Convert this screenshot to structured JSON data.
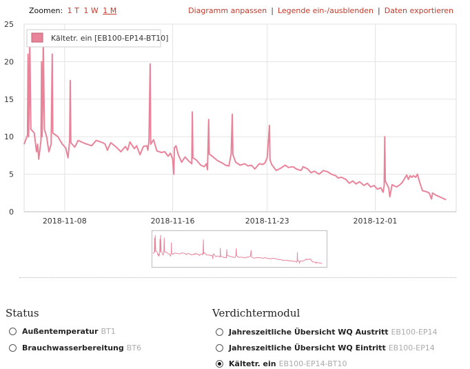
{
  "toolbar": {
    "zoom_label": "Zoomen:",
    "zoom_options": [
      "1 T",
      "1 W",
      "1 M"
    ],
    "zoom_active": "1 M",
    "actions": [
      "Diagramm anpassen",
      "Legende ein-/ausblenden",
      "Daten exportieren"
    ]
  },
  "chart_data": {
    "type": "line",
    "x_start": "2018-11-05",
    "x_end": "2018-12-07",
    "ylim": [
      0,
      25
    ],
    "yticks": [
      0,
      5,
      10,
      15,
      20,
      25
    ],
    "xticks": [
      "2018-11-08",
      "2018-11-16",
      "2018-11-23",
      "2018-12-01"
    ],
    "grid": true,
    "legend_position": "top-left",
    "series": [
      {
        "name": "Kältetr. ein [EB100-EP14-BT10]",
        "color": "#e8839a",
        "points": [
          [
            "2018-11-05 00:00",
            9.0
          ],
          [
            "2018-11-05 06:00",
            10.2
          ],
          [
            "2018-11-05 07:00",
            21.0
          ],
          [
            "2018-11-05 08:00",
            10.0
          ],
          [
            "2018-11-05 09:00",
            14.0
          ],
          [
            "2018-11-05 10:00",
            23.0
          ],
          [
            "2018-11-05 12:00",
            11.0
          ],
          [
            "2018-11-05 18:00",
            10.5
          ],
          [
            "2018-11-05 22:00",
            8.0
          ],
          [
            "2018-11-06 00:00",
            9.0
          ],
          [
            "2018-11-06 02:00",
            7.0
          ],
          [
            "2018-11-06 06:00",
            9.5
          ],
          [
            "2018-11-06 07:00",
            20.0
          ],
          [
            "2018-11-06 08:00",
            10.0
          ],
          [
            "2018-11-06 09:00",
            14.0
          ],
          [
            "2018-11-06 10:00",
            23.0
          ],
          [
            "2018-11-06 12:00",
            11.0
          ],
          [
            "2018-11-06 16:00",
            10.0
          ],
          [
            "2018-11-06 20:00",
            8.0
          ],
          [
            "2018-11-07 00:00",
            9.0
          ],
          [
            "2018-11-07 02:00",
            21.0
          ],
          [
            "2018-11-07 03:00",
            10.5
          ],
          [
            "2018-11-07 12:00",
            10.0
          ],
          [
            "2018-11-07 20:00",
            9.0
          ],
          [
            "2018-11-08 02:00",
            8.5
          ],
          [
            "2018-11-08 06:00",
            7.2
          ],
          [
            "2018-11-08 09:00",
            9.5
          ],
          [
            "2018-11-08 10:00",
            17.5
          ],
          [
            "2018-11-08 11:00",
            9.2
          ],
          [
            "2018-11-08 18:00",
            8.6
          ],
          [
            "2018-11-09 00:00",
            9.5
          ],
          [
            "2018-11-09 12:00",
            9.1
          ],
          [
            "2018-11-10 00:00",
            8.8
          ],
          [
            "2018-11-10 08:00",
            9.5
          ],
          [
            "2018-11-10 20:00",
            9.2
          ],
          [
            "2018-11-11 00:00",
            9.0
          ],
          [
            "2018-11-11 04:00",
            8.2
          ],
          [
            "2018-11-11 10:00",
            9.2
          ],
          [
            "2018-11-11 20:00",
            8.6
          ],
          [
            "2018-11-12 04:00",
            8.0
          ],
          [
            "2018-11-12 12:00",
            8.7
          ],
          [
            "2018-11-12 16:00",
            8.2
          ],
          [
            "2018-11-12 20:00",
            9.3
          ],
          [
            "2018-11-13 04:00",
            8.4
          ],
          [
            "2018-11-13 08:00",
            8.8
          ],
          [
            "2018-11-13 14:00",
            7.6
          ],
          [
            "2018-11-13 20:00",
            8.7
          ],
          [
            "2018-11-14 02:00",
            8.8
          ],
          [
            "2018-11-14 04:00",
            8.2
          ],
          [
            "2018-11-14 06:00",
            9.5
          ],
          [
            "2018-11-14 08:00",
            19.7
          ],
          [
            "2018-11-14 09:00",
            9.0
          ],
          [
            "2018-11-14 14:00",
            9.6
          ],
          [
            "2018-11-14 20:00",
            8.1
          ],
          [
            "2018-11-15 04:00",
            7.9
          ],
          [
            "2018-11-15 10:00",
            8.0
          ],
          [
            "2018-11-15 16:00",
            7.4
          ],
          [
            "2018-11-15 20:00",
            7.8
          ],
          [
            "2018-11-16 00:00",
            7.0
          ],
          [
            "2018-11-16 02:00",
            5.0
          ],
          [
            "2018-11-16 03:00",
            8.5
          ],
          [
            "2018-11-16 06:00",
            8.8
          ],
          [
            "2018-11-16 10:00",
            7.6
          ],
          [
            "2018-11-16 16:00",
            6.6
          ],
          [
            "2018-11-16 22:00",
            7.3
          ],
          [
            "2018-11-17 04:00",
            6.8
          ],
          [
            "2018-11-17 10:00",
            6.4
          ],
          [
            "2018-11-17 11:00",
            13.3
          ],
          [
            "2018-11-17 12:00",
            7.2
          ],
          [
            "2018-11-17 18:00",
            6.9
          ],
          [
            "2018-11-18 02:00",
            6.2
          ],
          [
            "2018-11-18 08:00",
            6.0
          ],
          [
            "2018-11-18 12:00",
            6.4
          ],
          [
            "2018-11-18 14:00",
            5.6
          ],
          [
            "2018-11-18 16:00",
            12.3
          ],
          [
            "2018-11-18 17:00",
            7.7
          ],
          [
            "2018-11-19 00:00",
            7.3
          ],
          [
            "2018-11-19 08:00",
            6.8
          ],
          [
            "2018-11-19 16:00",
            6.5
          ],
          [
            "2018-11-19 22:00",
            6.2
          ],
          [
            "2018-11-20 04:00",
            6.1
          ],
          [
            "2018-11-20 08:00",
            7.7
          ],
          [
            "2018-11-20 10:00",
            13.0
          ],
          [
            "2018-11-20 11:00",
            7.6
          ],
          [
            "2018-11-20 16:00",
            6.6
          ],
          [
            "2018-11-21 00:00",
            6.2
          ],
          [
            "2018-11-21 08:00",
            6.4
          ],
          [
            "2018-11-21 14:00",
            6.1
          ],
          [
            "2018-11-21 20:00",
            6.2
          ],
          [
            "2018-11-22 02:00",
            5.7
          ],
          [
            "2018-11-22 10:00",
            6.4
          ],
          [
            "2018-11-22 16:00",
            6.3
          ],
          [
            "2018-11-22 20:00",
            6.5
          ],
          [
            "2018-11-23 00:00",
            7.2
          ],
          [
            "2018-11-23 04:00",
            11.5
          ],
          [
            "2018-11-23 05:00",
            6.9
          ],
          [
            "2018-11-23 08:00",
            6.3
          ],
          [
            "2018-11-23 16:00",
            5.5
          ],
          [
            "2018-11-24 00:00",
            5.8
          ],
          [
            "2018-11-24 08:00",
            6.2
          ],
          [
            "2018-11-24 14:00",
            5.9
          ],
          [
            "2018-11-24 22:00",
            6.0
          ],
          [
            "2018-11-25 04:00",
            5.7
          ],
          [
            "2018-11-25 12:00",
            5.5
          ],
          [
            "2018-11-25 16:00",
            6.0
          ],
          [
            "2018-11-26 00:00",
            5.7
          ],
          [
            "2018-11-26 06:00",
            5.2
          ],
          [
            "2018-11-26 12:00",
            5.4
          ],
          [
            "2018-11-26 20:00",
            5.0
          ],
          [
            "2018-11-27 04:00",
            5.5
          ],
          [
            "2018-11-27 12:00",
            5.3
          ],
          [
            "2018-11-27 18:00",
            5.0
          ],
          [
            "2018-11-28 02:00",
            4.8
          ],
          [
            "2018-11-28 06:00",
            4.5
          ],
          [
            "2018-11-28 12:00",
            4.6
          ],
          [
            "2018-11-28 20:00",
            4.3
          ],
          [
            "2018-11-29 02:00",
            3.8
          ],
          [
            "2018-11-29 08:00",
            4.1
          ],
          [
            "2018-11-29 14:00",
            3.7
          ],
          [
            "2018-11-29 20:00",
            4.0
          ],
          [
            "2018-11-30 04:00",
            3.5
          ],
          [
            "2018-11-30 10:00",
            3.8
          ],
          [
            "2018-11-30 16:00",
            3.3
          ],
          [
            "2018-11-30 22:00",
            3.5
          ],
          [
            "2018-12-01 04:00",
            3.0
          ],
          [
            "2018-12-01 10:00",
            3.2
          ],
          [
            "2018-12-01 14:00",
            2.6
          ],
          [
            "2018-12-01 16:00",
            3.5
          ],
          [
            "2018-12-01 17:00",
            10.0
          ],
          [
            "2018-12-01 18:00",
            4.1
          ],
          [
            "2018-12-02 00:00",
            3.2
          ],
          [
            "2018-12-02 02:00",
            2.0
          ],
          [
            "2018-12-02 06:00",
            3.6
          ],
          [
            "2018-12-02 14:00",
            3.3
          ],
          [
            "2018-12-02 20:00",
            3.6
          ],
          [
            "2018-12-03 00:00",
            3.9
          ],
          [
            "2018-12-03 04:00",
            4.4
          ],
          [
            "2018-12-03 08:00",
            4.9
          ],
          [
            "2018-12-03 11:00",
            4.3
          ],
          [
            "2018-12-03 14:00",
            4.8
          ],
          [
            "2018-12-03 17:00",
            4.6
          ],
          [
            "2018-12-03 20:00",
            4.8
          ],
          [
            "2018-12-04 00:00",
            4.6
          ],
          [
            "2018-12-04 03:00",
            5.0
          ],
          [
            "2018-12-04 06:00",
            4.2
          ],
          [
            "2018-12-04 12:00",
            2.8
          ],
          [
            "2018-12-04 18:00",
            2.7
          ],
          [
            "2018-12-05 00:00",
            2.5
          ],
          [
            "2018-12-05 04:00",
            1.7
          ],
          [
            "2018-12-05 06:00",
            2.5
          ],
          [
            "2018-12-05 12:00",
            2.2
          ],
          [
            "2018-12-05 18:00",
            2.0
          ],
          [
            "2018-12-06 00:00",
            1.8
          ],
          [
            "2018-12-06 06:00",
            1.6
          ]
        ]
      }
    ]
  },
  "status": {
    "title": "Status",
    "options": [
      {
        "label": "Außentemperatur",
        "code": "BT1",
        "checked": false
      },
      {
        "label": "Brauchwasserbereitung",
        "code": "BT6",
        "checked": false
      }
    ]
  },
  "compressor": {
    "title": "Verdichtermodul",
    "options": [
      {
        "label": "Jahreszeitliche Übersicht WQ Austritt",
        "code": "EB100-EP14",
        "checked": false
      },
      {
        "label": "Jahreszeitliche Übersicht WQ Eintritt",
        "code": "EB100-EP14",
        "checked": false
      },
      {
        "label": "Kältetr. ein",
        "code": "EB100-EP14-BT10",
        "checked": true
      }
    ]
  }
}
